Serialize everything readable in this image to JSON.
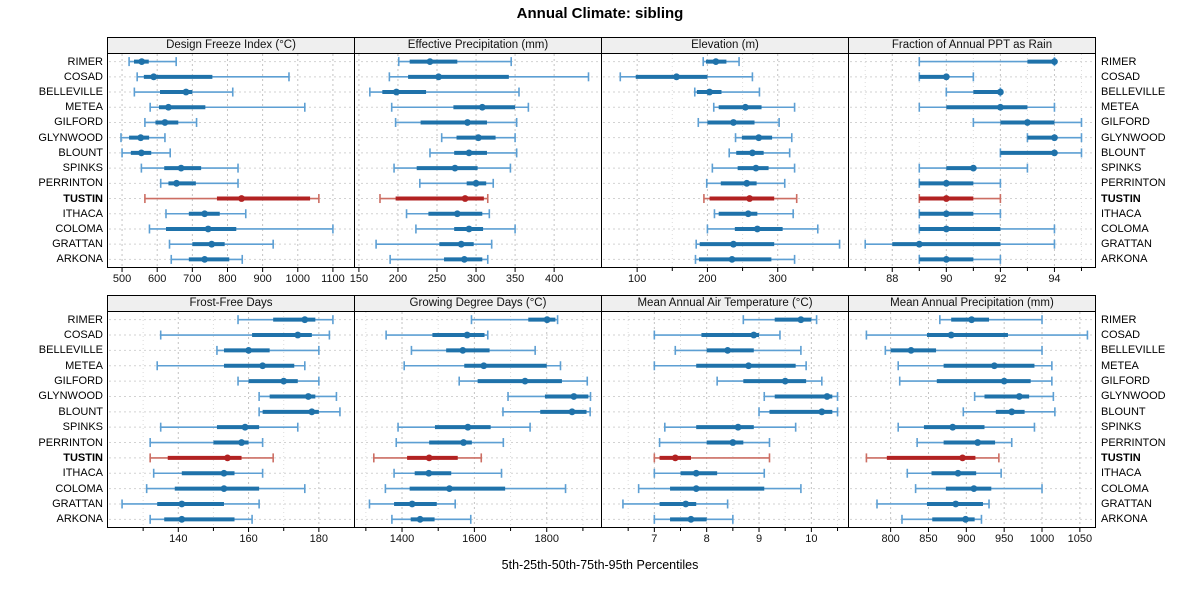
{
  "title": "Annual Climate: sibling",
  "xlabel": "5th-25th-50th-75th-95th Percentiles",
  "colors": {
    "normal": "#1f72aa",
    "normal_light": "#5d9fd3",
    "highlight": "#b22222",
    "highlight_light": "#cc6e63",
    "strip_bg": "#efefef",
    "panel_border": "#000000",
    "grid_major": "#c3c3c3",
    "grid_minor": "#dcdcdc",
    "grid_row": "#d2d2d2",
    "tick": "#000000"
  },
  "chart_data": {
    "type": "dotplot",
    "note": "5-25-50-75-95 percentile intervals per site; thin line = 5th-95th, thick bar = 25th-75th, dot = median",
    "percentiles": [
      5,
      25,
      50,
      75,
      95
    ],
    "sites": [
      "RIMER",
      "COSAD",
      "BELLEVILLE",
      "METEA",
      "GILFORD",
      "GLYNWOOD",
      "BLOUNT",
      "SPINKS",
      "PERRINTON",
      "TUSTIN",
      "ITHACA",
      "COLOMA",
      "GRATTAN",
      "ARKONA"
    ],
    "highlight_site": "TUSTIN",
    "panels": [
      {
        "title": "Design Freeze Index (°C)",
        "xlim": [
          460,
          1160
        ],
        "major_ticks": [
          500,
          600,
          700,
          800,
          900,
          1000,
          1100
        ],
        "minor_ticks": [],
        "values": {
          "RIMER": [
            520,
            534,
            556,
            576,
            654
          ],
          "COSAD": [
            543,
            562,
            590,
            757,
            975
          ],
          "BELLEVILLE": [
            535,
            608,
            682,
            700,
            815
          ],
          "METEA": [
            580,
            605,
            632,
            737,
            1020
          ],
          "GILFORD": [
            565,
            595,
            622,
            660,
            712
          ],
          "GLYNWOOD": [
            497,
            520,
            553,
            577,
            622
          ],
          "BLOUNT": [
            500,
            525,
            555,
            583,
            637
          ],
          "SPINKS": [
            555,
            620,
            668,
            725,
            830
          ],
          "PERRINTON": [
            610,
            632,
            655,
            710,
            830
          ],
          "TUSTIN": [
            565,
            770,
            840,
            1035,
            1060
          ],
          "ITHACA": [
            625,
            690,
            735,
            778,
            852
          ],
          "COLOMA": [
            578,
            625,
            745,
            825,
            1100
          ],
          "GRATTAN": [
            635,
            700,
            755,
            792,
            930
          ],
          "ARKONA": [
            640,
            690,
            735,
            805,
            842
          ]
        }
      },
      {
        "title": "Effective Precipitation (mm)",
        "xlim": [
          145,
          460
        ],
        "major_ticks": [
          150,
          200,
          250,
          300,
          350,
          400
        ],
        "minor_ticks": [],
        "values": {
          "RIMER": [
            201,
            215,
            241,
            276,
            345
          ],
          "COSAD": [
            189,
            213,
            252,
            342,
            444
          ],
          "BELLEVILLE": [
            164,
            180,
            198,
            236,
            355
          ],
          "METEA": [
            192,
            271,
            308,
            350,
            367
          ],
          "GILFORD": [
            197,
            229,
            289,
            314,
            352
          ],
          "GLYNWOOD": [
            256,
            275,
            303,
            325,
            350
          ],
          "BLOUNT": [
            241,
            272,
            291,
            314,
            352
          ],
          "SPINKS": [
            195,
            224,
            273,
            302,
            344
          ],
          "PERRINTON": [
            228,
            288,
            300,
            313,
            322
          ],
          "TUSTIN": [
            177,
            197,
            286,
            310,
            315
          ],
          "ITHACA": [
            211,
            239,
            276,
            308,
            317
          ],
          "COLOMA": [
            223,
            272,
            291,
            309,
            350
          ],
          "GRATTAN": [
            172,
            253,
            281,
            297,
            320
          ],
          "ARKONA": [
            190,
            259,
            285,
            308,
            315
          ]
        }
      },
      {
        "title": "Elevation (m)",
        "xlim": [
          50,
          400
        ],
        "major_ticks": [
          100,
          200,
          300
        ],
        "minor_ticks": [
          150,
          250,
          350
        ],
        "values": {
          "RIMER": [
            194,
            198,
            212,
            227,
            245
          ],
          "COSAD": [
            76,
            98,
            156,
            200,
            264
          ],
          "BELLEVILLE": [
            182,
            185,
            203,
            220,
            274
          ],
          "METEA": [
            209,
            216,
            254,
            277,
            324
          ],
          "GILFORD": [
            187,
            200,
            237,
            267,
            302
          ],
          "GLYNWOOD": [
            240,
            249,
            273,
            292,
            320
          ],
          "BLOUNT": [
            231,
            241,
            264,
            280,
            317
          ],
          "SPINKS": [
            207,
            243,
            269,
            287,
            324
          ],
          "PERRINTON": [
            199,
            219,
            256,
            270,
            310
          ],
          "TUSTIN": [
            195,
            203,
            260,
            295,
            327
          ],
          "ITHACA": [
            210,
            216,
            258,
            271,
            322
          ],
          "COLOMA": [
            200,
            239,
            271,
            307,
            357
          ],
          "GRATTAN": [
            184,
            189,
            237,
            295,
            388
          ],
          "ARKONA": [
            183,
            188,
            235,
            291,
            324
          ]
        }
      },
      {
        "title": "Fraction of Annual PPT as Rain",
        "xlim": [
          86.4,
          95.5
        ],
        "major_ticks": [
          88,
          90,
          92,
          94
        ],
        "minor_ticks": [
          87,
          89,
          91,
          93,
          95
        ],
        "values": {
          "RIMER": [
            89,
            93,
            94,
            94,
            94
          ],
          "COSAD": [
            89,
            89,
            90,
            90,
            91
          ],
          "BELLEVILLE": [
            90,
            91,
            92,
            92,
            92
          ],
          "METEA": [
            89,
            90,
            92,
            93,
            94
          ],
          "GILFORD": [
            91,
            92,
            93,
            94,
            95
          ],
          "GLYNWOOD": [
            93,
            93,
            94,
            94,
            95
          ],
          "BLOUNT": [
            92,
            92,
            94,
            94,
            95
          ],
          "SPINKS": [
            89,
            90,
            91,
            91,
            93
          ],
          "PERRINTON": [
            89,
            89,
            90,
            91,
            92
          ],
          "TUSTIN": [
            89,
            89,
            90,
            91,
            92
          ],
          "ITHACA": [
            89,
            89,
            90,
            91,
            92
          ],
          "COLOMA": [
            89,
            89,
            90,
            92,
            94
          ],
          "GRATTAN": [
            87,
            88,
            89,
            92,
            94
          ],
          "ARKONA": [
            89,
            89,
            90,
            91,
            92
          ]
        }
      },
      {
        "title": "Frost-Free Days",
        "xlim": [
          120,
          190
        ],
        "major_ticks": [
          140,
          160,
          180
        ],
        "minor_ticks": [
          130,
          150,
          170
        ],
        "values": {
          "RIMER": [
            157,
            167,
            176,
            179,
            184
          ],
          "COSAD": [
            135,
            161,
            174,
            178,
            183
          ],
          "BELLEVILLE": [
            151,
            153,
            160,
            166,
            180
          ],
          "METEA": [
            134,
            153,
            164,
            173,
            176
          ],
          "GILFORD": [
            157,
            160,
            170,
            174,
            180
          ],
          "GLYNWOOD": [
            163,
            166,
            177,
            179,
            185
          ],
          "BLOUNT": [
            163,
            164,
            178,
            180,
            186
          ],
          "SPINKS": [
            135,
            151,
            159,
            163,
            174
          ],
          "PERRINTON": [
            132,
            150,
            158,
            160,
            164
          ],
          "TUSTIN": [
            132,
            137,
            154,
            158,
            167
          ],
          "ITHACA": [
            133,
            141,
            153,
            156,
            164
          ],
          "COLOMA": [
            131,
            139,
            153,
            163,
            176
          ],
          "GRATTAN": [
            124,
            134,
            141,
            153,
            163
          ],
          "ARKONA": [
            132,
            136,
            141,
            156,
            161
          ]
        }
      },
      {
        "title": "Growing Degree Days (°C)",
        "xlim": [
          1270,
          1950
        ],
        "major_ticks": [
          1400,
          1600,
          1800
        ],
        "minor_ticks": [
          1300,
          1500,
          1700,
          1900
        ],
        "values": {
          "RIMER": [
            1592,
            1749,
            1801,
            1824,
            1830
          ],
          "COSAD": [
            1356,
            1484,
            1580,
            1628,
            1637
          ],
          "BELLEVILLE": [
            1426,
            1522,
            1568,
            1642,
            1768
          ],
          "METEA": [
            1406,
            1572,
            1626,
            1800,
            1838
          ],
          "GILFORD": [
            1558,
            1609,
            1740,
            1842,
            1912
          ],
          "GLYNWOOD": [
            1693,
            1795,
            1875,
            1915,
            1921
          ],
          "BLOUNT": [
            1679,
            1782,
            1870,
            1910,
            1920
          ],
          "SPINKS": [
            1389,
            1491,
            1582,
            1645,
            1754
          ],
          "PERRINTON": [
            1384,
            1475,
            1570,
            1593,
            1680
          ],
          "TUSTIN": [
            1322,
            1414,
            1475,
            1554,
            1619
          ],
          "ITHACA": [
            1378,
            1435,
            1474,
            1536,
            1675
          ],
          "COLOMA": [
            1354,
            1421,
            1531,
            1685,
            1852
          ],
          "GRATTAN": [
            1310,
            1378,
            1428,
            1496,
            1547
          ],
          "ARKONA": [
            1372,
            1424,
            1450,
            1490,
            1590
          ]
        }
      },
      {
        "title": "Mean Annual Air Temperature (°C)",
        "xlim": [
          6.0,
          10.7
        ],
        "major_ticks": [
          7,
          8,
          9,
          10
        ],
        "minor_ticks": [
          6.5,
          7.5,
          8.5,
          9.5,
          10.5
        ],
        "values": {
          "RIMER": [
            8.7,
            9.3,
            9.8,
            10.0,
            10.1
          ],
          "COSAD": [
            7.0,
            7.9,
            8.9,
            9.0,
            9.4
          ],
          "BELLEVILLE": [
            7.4,
            8.0,
            8.4,
            8.9,
            9.8
          ],
          "METEA": [
            7.0,
            7.8,
            8.8,
            9.7,
            9.9
          ],
          "GILFORD": [
            8.2,
            8.7,
            9.5,
            9.9,
            10.2
          ],
          "GLYNWOOD": [
            9.1,
            9.3,
            10.3,
            10.4,
            10.5
          ],
          "BLOUNT": [
            9.0,
            9.2,
            10.2,
            10.4,
            10.5
          ],
          "SPINKS": [
            7.2,
            7.8,
            8.6,
            8.9,
            9.7
          ],
          "PERRINTON": [
            7.1,
            8.0,
            8.5,
            8.7,
            9.2
          ],
          "TUSTIN": [
            7.0,
            7.1,
            7.4,
            7.7,
            9.2
          ],
          "ITHACA": [
            7.0,
            7.5,
            7.8,
            8.2,
            9.1
          ],
          "COLOMA": [
            6.7,
            7.3,
            7.8,
            9.1,
            9.8
          ],
          "GRATTAN": [
            6.4,
            7.1,
            7.6,
            7.8,
            8.4
          ],
          "ARKONA": [
            7.0,
            7.3,
            7.7,
            8.0,
            8.5
          ]
        }
      },
      {
        "title": "Mean Annual Precipitation (mm)",
        "xlim": [
          745,
          1070
        ],
        "major_ticks": [
          800,
          850,
          900,
          950,
          1000,
          1050
        ],
        "minor_ticks": [],
        "values": {
          "RIMER": [
            865,
            880,
            907,
            930,
            1000
          ],
          "COSAD": [
            768,
            848,
            880,
            955,
            1060
          ],
          "BELLEVILLE": [
            793,
            800,
            827,
            860,
            1000
          ],
          "METEA": [
            810,
            870,
            937,
            990,
            1013
          ],
          "GILFORD": [
            812,
            861,
            950,
            985,
            1013
          ],
          "GLYNWOOD": [
            911,
            924,
            970,
            983,
            1015
          ],
          "BLOUNT": [
            896,
            939,
            960,
            977,
            1017
          ],
          "SPINKS": [
            810,
            844,
            882,
            924,
            990
          ],
          "PERRINTON": [
            835,
            870,
            915,
            938,
            960
          ],
          "TUSTIN": [
            768,
            795,
            895,
            912,
            943
          ],
          "ITHACA": [
            822,
            854,
            889,
            913,
            946
          ],
          "COLOMA": [
            833,
            873,
            910,
            933,
            1000
          ],
          "GRATTAN": [
            782,
            848,
            886,
            922,
            930
          ],
          "ARKONA": [
            815,
            855,
            899,
            911,
            920
          ]
        }
      }
    ]
  }
}
